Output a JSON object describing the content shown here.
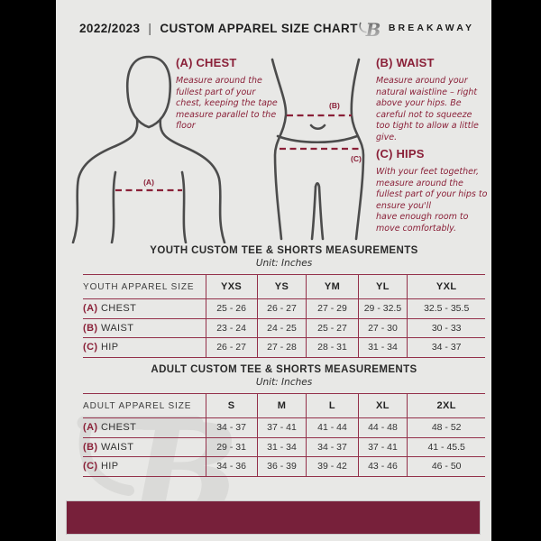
{
  "header": {
    "year": "2022/2023",
    "separator": "|",
    "title": "CUSTOM APPAREL SIZE CHART",
    "brand": "BREAKAWAY",
    "logo_icon": "breakaway-b-logo"
  },
  "guide": {
    "marker_a": "(A)",
    "marker_b": "(B)",
    "marker_c": "(C)",
    "sections": [
      {
        "heading": "(A) CHEST",
        "body": "Measure around the fullest part of your chest, keeping the tape measure parallel to the floor"
      },
      {
        "heading": "(B) WAIST",
        "body": "Measure around your natural waistline – right above your hips. Be careful not to squeeze too tight to allow a little give."
      },
      {
        "heading": "(C) HIPS",
        "body": "With your feet together, measure around the fullest part of your hips to ensure you'll\nhave enough room to move comfortably."
      }
    ]
  },
  "tables": [
    {
      "title": "YOUTH CUSTOM TEE & SHORTS MEASUREMENTS",
      "unit": "Unit: Inches",
      "header": [
        "YOUTH APPAREL SIZE",
        "YXS",
        "YS",
        "YM",
        "YL",
        "YXL"
      ],
      "rows": [
        {
          "prefix": "(A)",
          "label": "CHEST",
          "values": [
            "25 - 26",
            "26 - 27",
            "27 - 29",
            "29 - 32.5",
            "32.5 - 35.5"
          ]
        },
        {
          "prefix": "(B)",
          "label": "WAIST",
          "values": [
            "23 - 24",
            "24 - 25",
            "25 - 27",
            "27 - 30",
            "30 - 33"
          ]
        },
        {
          "prefix": "(C)",
          "label": "HIP",
          "values": [
            "26 - 27",
            "27 - 28",
            "28 - 31",
            "31 - 34",
            "34 - 37"
          ]
        }
      ]
    },
    {
      "title": "ADULT CUSTOM TEE & SHORTS MEASUREMENTS",
      "unit": "Unit: Inches",
      "header": [
        "ADULT APPAREL SIZE",
        "S",
        "M",
        "L",
        "XL",
        "2XL"
      ],
      "rows": [
        {
          "prefix": "(A)",
          "label": "CHEST",
          "values": [
            "34 - 37",
            "37 - 41",
            "41 - 44",
            "44 - 48",
            "48 - 52"
          ]
        },
        {
          "prefix": "(B)",
          "label": "WAIST",
          "values": [
            "29 - 31",
            "31 - 34",
            "34 - 37",
            "37 - 41",
            "41 - 45.5"
          ]
        },
        {
          "prefix": "(C)",
          "label": "HIP",
          "values": [
            "34 - 36",
            "36 - 39",
            "39 - 42",
            "43 - 46",
            "46 - 50"
          ]
        }
      ]
    }
  ],
  "colors": {
    "maroon_accent": "#8a2038",
    "table_line": "#93304a",
    "footer_bar": "#77203a",
    "page_background": "#e8e8e6",
    "figure_stroke": "#4c4c4c"
  }
}
